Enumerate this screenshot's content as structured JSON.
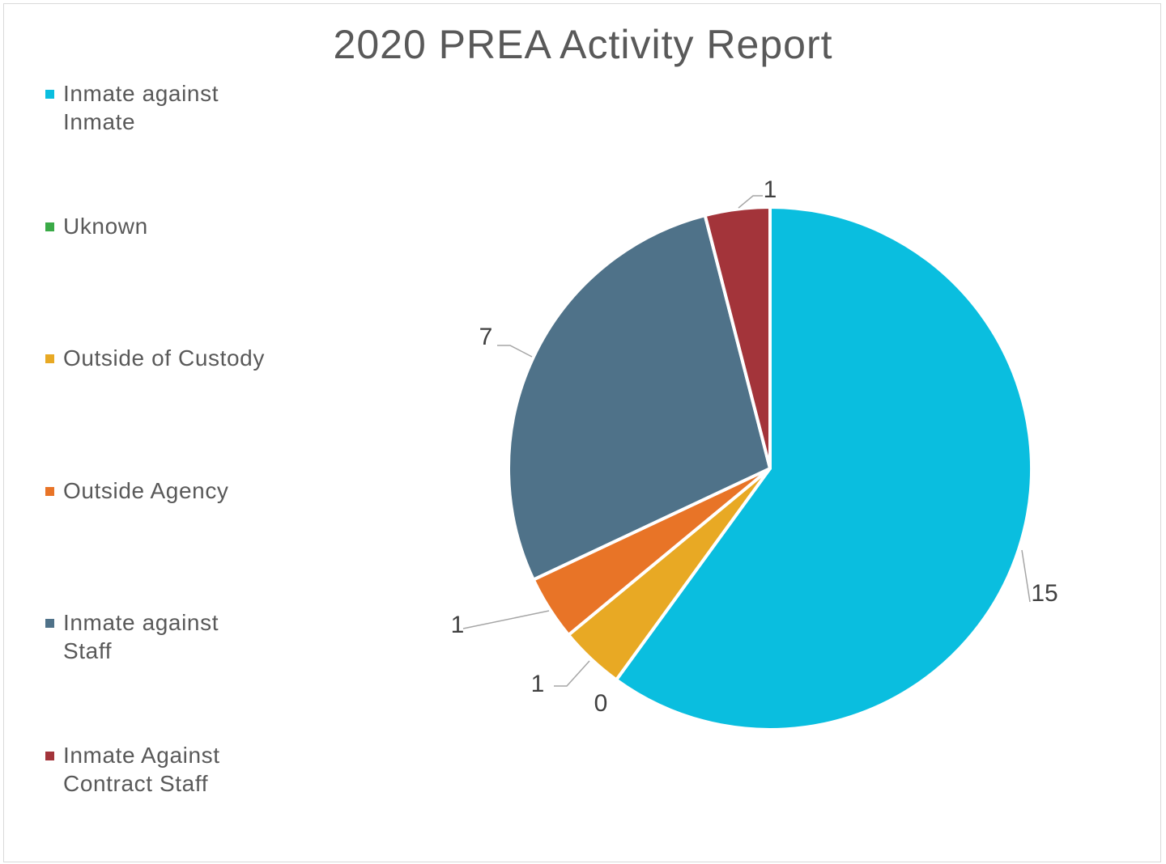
{
  "chart_data": {
    "type": "pie",
    "title": "2020 PREA Activity Report",
    "legend_position": "left",
    "slices": [
      {
        "name": "Inmate against Inmate",
        "legend_text": "Inmate against\nInmate",
        "value": 15,
        "label": "15",
        "color": "#0abedf"
      },
      {
        "name": "Uknown",
        "legend_text": "Uknown",
        "value": 0,
        "label": "0",
        "color": "#3aaa47"
      },
      {
        "name": "Outside of Custody",
        "legend_text": "Outside of Custody",
        "value": 1,
        "label": "1",
        "color": "#e8a924"
      },
      {
        "name": "Outside Agency",
        "legend_text": "Outside Agency",
        "value": 1,
        "label": "1",
        "color": "#e87427"
      },
      {
        "name": "Inmate against Staff",
        "legend_text": "Inmate against\nStaff",
        "value": 7,
        "label": "7",
        "color": "#4f7289"
      },
      {
        "name": "Inmate Against Contract Staff",
        "legend_text": "Inmate Against\nContract Staff",
        "value": 1,
        "label": "1",
        "color": "#a3343a"
      }
    ]
  }
}
